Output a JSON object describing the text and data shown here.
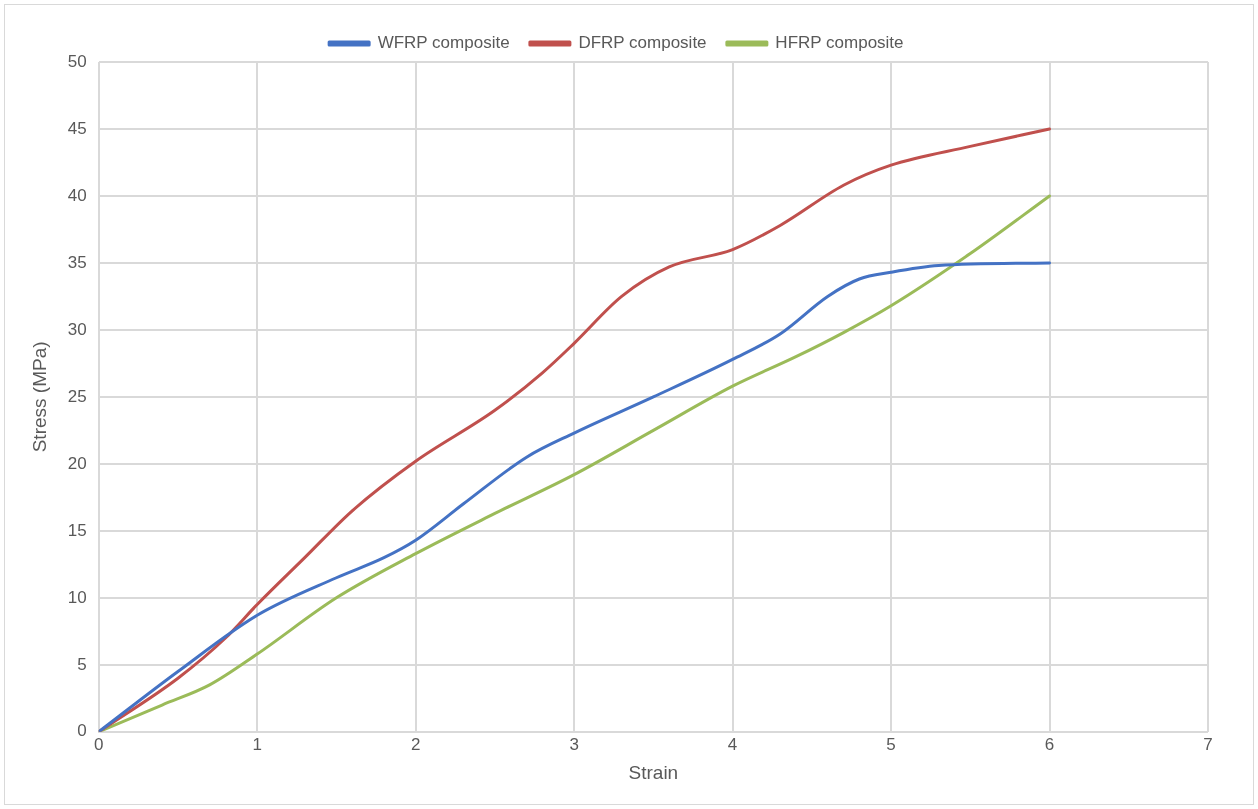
{
  "chart_data": {
    "type": "line",
    "xlabel": "Strain",
    "ylabel": "Stress (MPa)",
    "xlim": [
      0,
      7
    ],
    "xticks": [
      0,
      1,
      2,
      3,
      4,
      5,
      6,
      7
    ],
    "ylim": [
      0,
      50
    ],
    "yticks": [
      0,
      5,
      10,
      15,
      20,
      25,
      30,
      35,
      40,
      45,
      50
    ],
    "grid": true,
    "legend": "top",
    "marker": "none",
    "line_style": "solid",
    "series": [
      {
        "name": "WFRP composite",
        "color": "#4472c4",
        "x": [
          0,
          0.5,
          1,
          1.5,
          1.8,
          2,
          2.3,
          2.7,
          3,
          3.5,
          4,
          4.3,
          4.6,
          4.8,
          5,
          5.3,
          6
        ],
        "values": [
          0,
          4.5,
          8.7,
          11.5,
          13,
          14.3,
          17,
          20.5,
          22.3,
          25,
          27.8,
          29.7,
          32.5,
          33.8,
          34.3,
          34.8,
          35
        ]
      },
      {
        "name": "DFRP composite",
        "color": "#c0504d",
        "x": [
          0,
          0.5,
          0.8,
          1,
          1.3,
          1.6,
          2,
          2.5,
          2.8,
          3,
          3.3,
          3.6,
          4,
          4.3,
          4.7,
          5,
          5.5,
          6
        ],
        "values": [
          0,
          4,
          7,
          9.5,
          13,
          16.5,
          20.2,
          24,
          26.8,
          29,
          32.5,
          34.7,
          36,
          37.8,
          40.8,
          42.3,
          43.7,
          45
        ]
      },
      {
        "name": "HFRP composite",
        "color": "#9bbb59",
        "x": [
          0,
          0.4,
          0.7,
          1,
          1.5,
          2,
          2.5,
          3,
          3.5,
          4,
          4.4,
          4.7,
          5,
          5.5,
          6
        ],
        "values": [
          0,
          2,
          3.5,
          5.8,
          10,
          13.3,
          16.3,
          19.2,
          22.5,
          25.8,
          28,
          29.8,
          31.8,
          35.7,
          40
        ]
      }
    ]
  }
}
